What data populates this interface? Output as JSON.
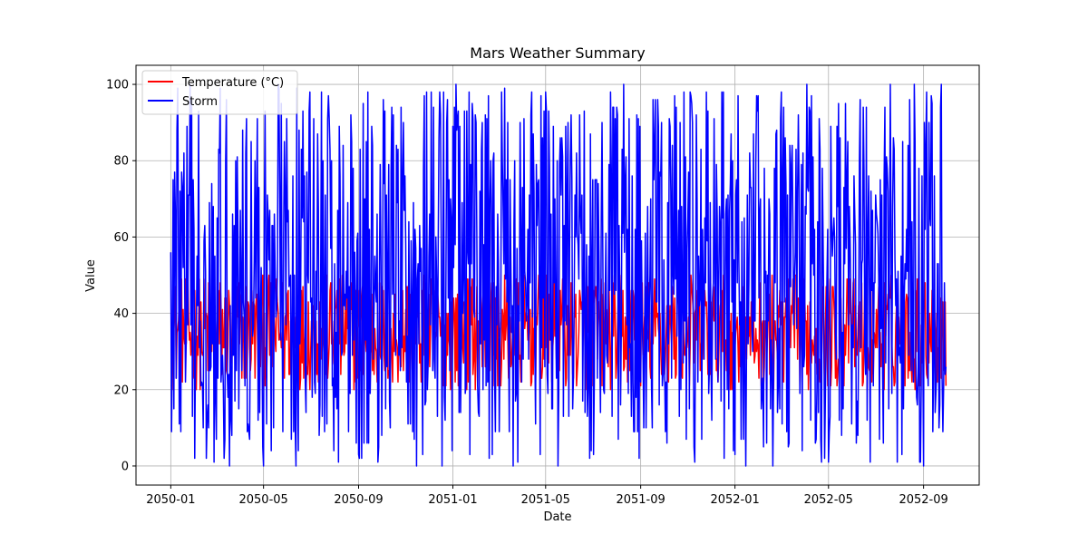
{
  "chart_data": {
    "type": "line",
    "title": "Mars Weather Summary",
    "xlabel": "Date",
    "ylabel": "Value",
    "x_range": [
      "2050-01-01",
      "2052-09-30"
    ],
    "xlim": [
      "2049-11-17",
      "2052-11-12"
    ],
    "ylim": [
      -5,
      105
    ],
    "x_ticks": [
      "2050-01",
      "2050-05",
      "2050-09",
      "2051-01",
      "2051-05",
      "2051-09",
      "2052-01",
      "2052-05",
      "2052-09"
    ],
    "y_ticks": [
      0,
      20,
      40,
      60,
      80,
      100
    ],
    "grid": true,
    "legend_position": "top-left",
    "series": [
      {
        "name": "Temperature (°C)",
        "color": "#ff0000",
        "range": [
          20,
          50
        ],
        "sample_points": [
          [
            "2050-01-01",
            21
          ],
          [
            "2050-01-04",
            39
          ],
          [
            "2050-02-10",
            30
          ],
          [
            "2050-06-01",
            45
          ],
          [
            "2050-10-15",
            22
          ],
          [
            "2051-01-10",
            46
          ],
          [
            "2051-06-01",
            35
          ],
          [
            "2051-10-20",
            48
          ],
          [
            "2052-02-15",
            24
          ],
          [
            "2052-06-20",
            20
          ],
          [
            "2052-09-15",
            40
          ],
          [
            "2052-09-30",
            21
          ]
        ]
      },
      {
        "name": "Storm",
        "color": "#0000ff",
        "range": [
          0,
          100
        ],
        "sample_points": [
          [
            "2050-01-01",
            56
          ],
          [
            "2050-01-05",
            15
          ],
          [
            "2050-01-10",
            99
          ],
          [
            "2050-02-01",
            2
          ],
          [
            "2050-05-01",
            0
          ],
          [
            "2050-05-20",
            100
          ],
          [
            "2050-11-15",
            0
          ],
          [
            "2051-01-05",
            100
          ],
          [
            "2051-03-20",
            0
          ],
          [
            "2051-08-10",
            100
          ],
          [
            "2052-01-15",
            0
          ],
          [
            "2052-07-20",
            100
          ],
          [
            "2052-09-01",
            0
          ],
          [
            "2052-09-30",
            26
          ]
        ]
      }
    ]
  }
}
